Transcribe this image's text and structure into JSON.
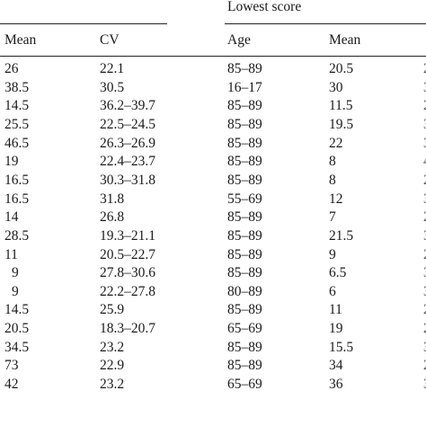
{
  "table": {
    "group_header": "Lowest score",
    "columns": [
      "Mean",
      "CV",
      "Age",
      "Mean"
    ],
    "rows": [
      [
        "26",
        "22.1",
        "85–89",
        "20.5"
      ],
      [
        "38.5",
        "30.5",
        "16–17",
        "30"
      ],
      [
        "14.5",
        "36.2–39.7",
        "85–89",
        "11.5"
      ],
      [
        "25.5",
        "22.5–24.5",
        "85–89",
        "19.5"
      ],
      [
        "46.5",
        "26.3–26.9",
        "85–89",
        "22"
      ],
      [
        "19",
        "22.4–23.7",
        "85–89",
        "8"
      ],
      [
        "16.5",
        "30.3–31.8",
        "85–89",
        "8"
      ],
      [
        "16.5",
        "31.8",
        "55–69",
        "12"
      ],
      [
        "14",
        "26.8",
        "85–89",
        "7"
      ],
      [
        "28.5",
        "19.3–21.1",
        "85–89",
        "21.5"
      ],
      [
        "11",
        "20.5–22.7",
        "85–89",
        "9"
      ],
      [
        "9",
        "27.8–30.6",
        "85–89",
        "6.5"
      ],
      [
        "9",
        "22.2–27.8",
        "80–89",
        "6"
      ],
      [
        "14.5",
        "25.9",
        "85–89",
        "11"
      ],
      [
        "20.5",
        "18.3–20.7",
        "65–69",
        "19"
      ],
      [
        "34.5",
        "23.2",
        "85–89",
        "15.5"
      ],
      [
        "73",
        "22.9",
        "85–89",
        "34"
      ],
      [
        "42",
        "23.2",
        "65–69",
        "36"
      ]
    ]
  }
}
